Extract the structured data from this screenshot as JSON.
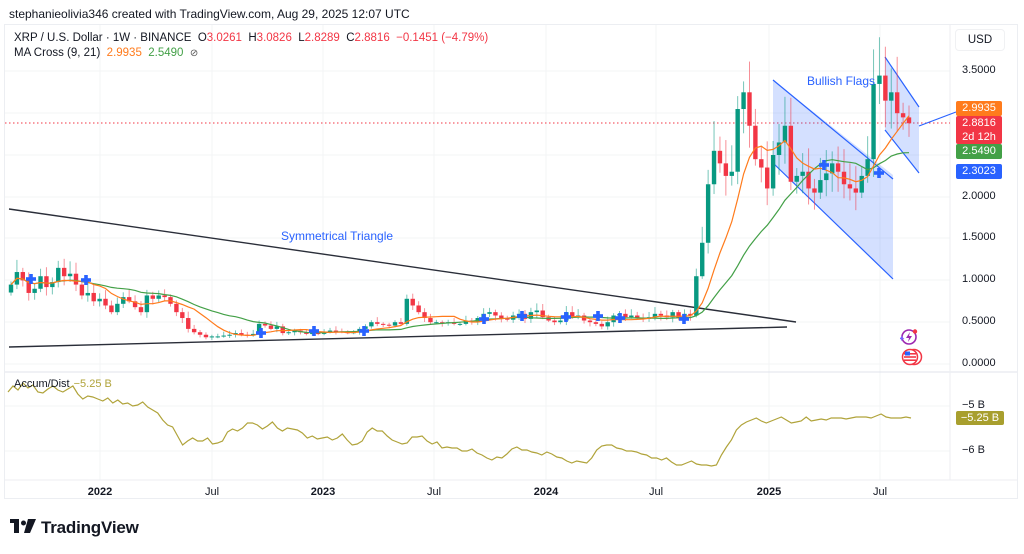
{
  "credit": "stephanieolivia346 created with TradingView.com, Aug 29, 2025 12:07 UTC",
  "legend": {
    "symbol": "XRP / U.S. Dollar · 1W · BINANCE",
    "o_label": "O",
    "o": "3.0261",
    "h_label": "H",
    "h": "3.0826",
    "l_label": "L",
    "l": "2.8289",
    "c_label": "C",
    "c": "2.8816",
    "change": "−0.1451 (−4.79%)",
    "ma_label": "MA Cross (9, 21)",
    "ma_fast": "2.9935",
    "ma_slow": "2.5490",
    "ma_icon": "⊘"
  },
  "currency": "USD",
  "price_axis": {
    "ticks": [
      {
        "label": "3.5000",
        "y": 71
      },
      {
        "label": "2.0000",
        "y": 197
      },
      {
        "label": "1.5000",
        "y": 238
      },
      {
        "label": "1.0000",
        "y": 280
      },
      {
        "label": "0.5000",
        "y": 322
      },
      {
        "label": "0.0000",
        "y": 364
      }
    ],
    "tags": [
      {
        "name": "ma-fast-tag",
        "label": "2.9935",
        "color": "#ff7b1c",
        "y": 101,
        "h": 15
      },
      {
        "name": "last-price-tag",
        "label": "2.8816",
        "sub": "2d 12h",
        "color": "#f23645",
        "y": 116,
        "h": 28
      },
      {
        "name": "ma-slow-tag",
        "label": "2.5490",
        "color": "#43a047",
        "y": 144,
        "h": 15
      },
      {
        "name": "trendline-tag",
        "label": "2.3023",
        "color": "#2962ff",
        "y": 164,
        "h": 15
      }
    ]
  },
  "time_axis": [
    {
      "label": "2022",
      "x": 100,
      "year": true
    },
    {
      "label": "Jul",
      "x": 212,
      "year": false
    },
    {
      "label": "2023",
      "x": 323,
      "year": true
    },
    {
      "label": "Jul",
      "x": 434,
      "year": false
    },
    {
      "label": "2024",
      "x": 546,
      "year": true
    },
    {
      "label": "Jul",
      "x": 656,
      "year": false
    },
    {
      "label": "2025",
      "x": 769,
      "year": true
    },
    {
      "label": "Jul",
      "x": 880,
      "year": false
    }
  ],
  "annotations": {
    "triangle": "Symmetrical Triangle",
    "flags": "Bullish Flags"
  },
  "accum_dist": {
    "label": "Accum/Dist",
    "value": "−5.25 B",
    "ticks": [
      {
        "label": "−5 B",
        "y": 406
      },
      {
        "label": "−6 B",
        "y": 451
      }
    ],
    "tag": "−5.25 B"
  },
  "brand": "TradingView",
  "colors": {
    "up": "#089981",
    "down": "#f23645",
    "ma_fast": "#ff7b1c",
    "ma_slow": "#43a047",
    "drawing": "#2962ff",
    "accum": "#b0a33a"
  },
  "chart_data": {
    "type": "candlestick",
    "title": "XRP / U.S. Dollar · 1W · BINANCE",
    "ylabel": "USD",
    "ylim": [
      0,
      3.8
    ],
    "x_ticks": [
      "2022",
      "Jul",
      "2023",
      "Jul",
      "2024",
      "Jul",
      "2025",
      "Jul"
    ],
    "y_ticks": [
      0.0,
      0.5,
      1.0,
      1.5,
      2.0,
      2.5,
      3.0,
      3.5
    ],
    "last": {
      "open": 3.0261,
      "high": 3.0826,
      "low": 2.8289,
      "close": 2.8816,
      "change": -0.1451,
      "change_pct": -4.79
    },
    "close_series_approx": [
      0.95,
      1.1,
      1.0,
      0.85,
      0.9,
      1.05,
      0.92,
      0.98,
      1.15,
      1.05,
      1.08,
      0.95,
      0.82,
      0.85,
      0.75,
      0.78,
      0.7,
      0.62,
      0.72,
      0.8,
      0.75,
      0.68,
      0.62,
      0.82,
      0.78,
      0.82,
      0.8,
      0.72,
      0.62,
      0.55,
      0.42,
      0.38,
      0.35,
      0.32,
      0.33,
      0.33,
      0.34,
      0.35,
      0.37,
      0.35,
      0.34,
      0.36,
      0.48,
      0.46,
      0.42,
      0.45,
      0.37,
      0.38,
      0.4,
      0.38,
      0.36,
      0.37,
      0.36,
      0.38,
      0.4,
      0.39,
      0.38,
      0.37,
      0.38,
      0.42,
      0.45,
      0.5,
      0.48,
      0.47,
      0.46,
      0.5,
      0.48,
      0.78,
      0.7,
      0.62,
      0.55,
      0.5,
      0.5,
      0.49,
      0.5,
      0.48,
      0.48,
      0.52,
      0.5,
      0.55,
      0.6,
      0.62,
      0.58,
      0.55,
      0.53,
      0.58,
      0.6,
      0.54,
      0.62,
      0.64,
      0.56,
      0.52,
      0.5,
      0.52,
      0.62,
      0.56,
      0.58,
      0.52,
      0.5,
      0.48,
      0.45,
      0.5,
      0.58,
      0.6,
      0.56,
      0.58,
      0.55,
      0.54,
      0.56,
      0.6,
      0.58,
      0.56,
      0.62,
      0.55,
      0.6,
      0.58,
      1.05,
      1.45,
      2.15,
      2.55,
      2.4,
      2.25,
      2.3,
      3.05,
      3.25,
      2.85,
      2.45,
      2.35,
      2.1,
      2.5,
      2.65,
      2.85,
      2.18,
      2.25,
      2.3,
      2.1,
      2.05,
      2.2,
      2.28,
      2.4,
      2.3,
      2.15,
      2.1,
      2.05,
      2.25,
      2.45,
      3.35,
      3.45,
      3.15,
      3.25,
      3.0,
      2.95,
      2.88
    ],
    "ma_fast_last": 2.9935,
    "ma_slow_last": 2.549,
    "drawings": [
      "Symmetrical Triangle",
      "Bullish Flags"
    ],
    "subchart": {
      "name": "Accum/Dist",
      "last": -5.25,
      "unit": "B",
      "ylim": [
        -6.3,
        -4.6
      ]
    }
  }
}
